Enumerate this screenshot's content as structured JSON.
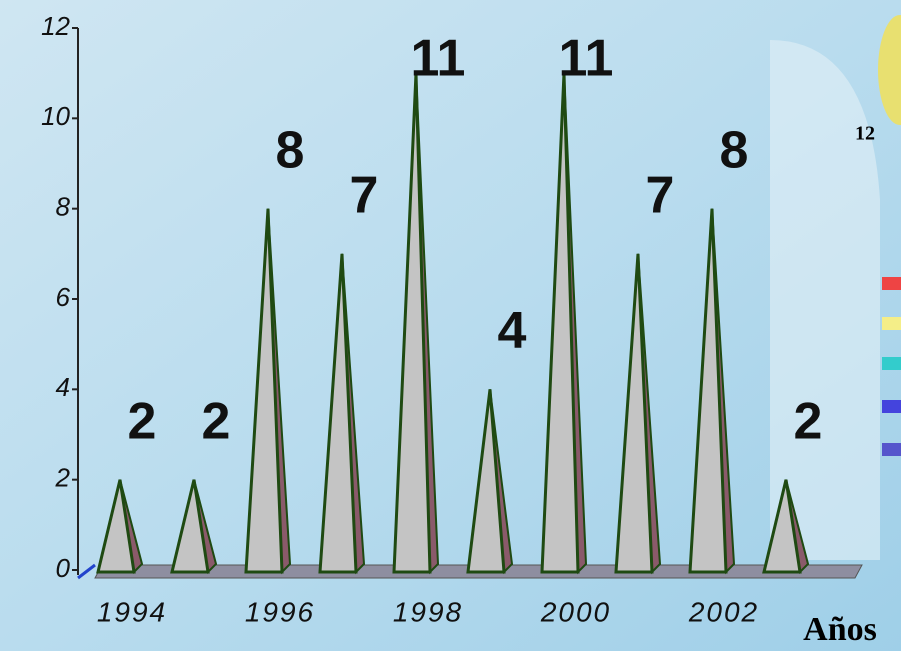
{
  "chart_data": {
    "type": "bar",
    "bar_shape": "pyramid",
    "categories": [
      "1994",
      null,
      "1996",
      null,
      "1998",
      null,
      "2000",
      null,
      "2002",
      null
    ],
    "values": [
      2,
      2,
      8,
      7,
      11,
      4,
      11,
      7,
      8,
      2
    ],
    "color": "#c4c4c4",
    "side_color": "#8a5a6a",
    "edge_color": "#1f4a12",
    "ylim": [
      0,
      12
    ],
    "yticks": [
      0,
      2,
      4,
      6,
      8,
      10,
      12
    ],
    "x_label": "Años",
    "side_text": "12"
  }
}
